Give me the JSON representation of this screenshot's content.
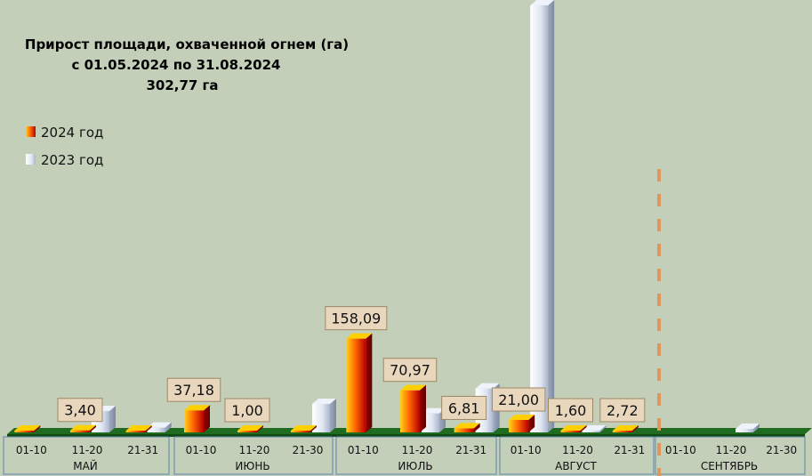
{
  "chart_data": {
    "type": "bar",
    "title_lines": [
      "Прирост площади, охваченной огнем (га)",
      "с 01.05.2024  по  31.08.2024",
      "302,77 га"
    ],
    "months": [
      {
        "name": "МАЙ",
        "ticks": [
          "01-10",
          "11-20",
          "21-31"
        ]
      },
      {
        "name": "ИЮНЬ",
        "ticks": [
          "01-10",
          "11-20",
          "21-30"
        ]
      },
      {
        "name": "ИЮЛЬ",
        "ticks": [
          "01-10",
          "11-20",
          "21-31"
        ]
      },
      {
        "name": "АВГУСТ",
        "ticks": [
          "01-10",
          "11-20",
          "21-31"
        ]
      },
      {
        "name": "СЕНТЯБРЬ",
        "ticks": [
          "01-10",
          "11-20",
          "21-30"
        ]
      }
    ],
    "series": [
      {
        "name": "2024 год",
        "color": "#e8321e",
        "values": [
          0.3,
          3.4,
          0.3,
          37.18,
          1.0,
          0.3,
          158.09,
          70.97,
          6.81,
          21.0,
          1.6,
          2.72,
          0,
          0,
          0
        ],
        "labels": [
          "",
          "3,40",
          "",
          "37,18",
          "1,00",
          "",
          "158,09",
          "70,97",
          "6,81",
          "21,00",
          "1,60",
          "2,72",
          "",
          "",
          ""
        ]
      },
      {
        "name": "2023 год",
        "color": "#dce4f2",
        "values": [
          0,
          36,
          8,
          0,
          0,
          48,
          0,
          32,
          74,
          720,
          1,
          0,
          0,
          6,
          0
        ]
      }
    ],
    "ylim": [
      0,
      720
    ],
    "legend_position": "left",
    "grid": false,
    "forecast_divider_after_index": 11
  }
}
